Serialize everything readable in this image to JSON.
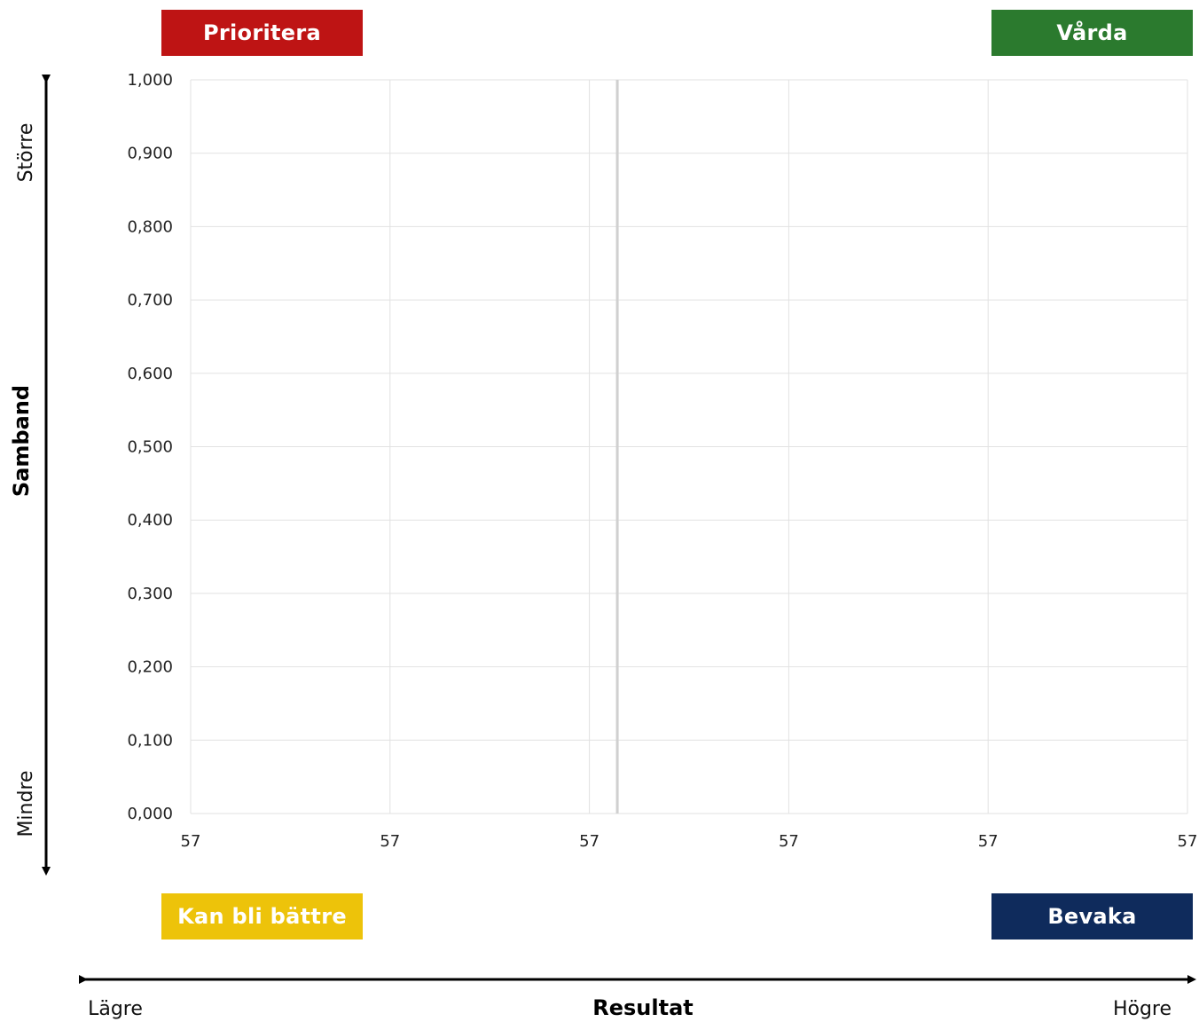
{
  "quadrants": {
    "top_left": {
      "label": "Prioritera",
      "color": "#BE1414"
    },
    "top_right": {
      "label": "Vårda",
      "color": "#2B7A2E"
    },
    "bottom_left": {
      "label": "Kan bli bättre",
      "color": "#EDC30A"
    },
    "bottom_right": {
      "label": "Bevaka",
      "color": "#0F2B5C"
    }
  },
  "y_axis": {
    "title": "Samband",
    "high_label": "Större",
    "low_label": "Mindre"
  },
  "x_axis": {
    "title": "Resultat",
    "low_label": "Lägre",
    "high_label": "Högre"
  },
  "chart_data": {
    "type": "scatter",
    "title": "",
    "xlabel": "Resultat",
    "ylabel": "Samband",
    "x_tick_labels": [
      "57",
      "57",
      "57",
      "57",
      "57",
      "57"
    ],
    "y_tick_labels": [
      "0,000",
      "0,100",
      "0,200",
      "0,300",
      "0,400",
      "0,500",
      "0,600",
      "0,700",
      "0,800",
      "0,900",
      "1,000"
    ],
    "ylim": [
      0,
      1
    ],
    "grid": true,
    "reference_line": {
      "orientation": "vertical",
      "color": "#d0d0d0"
    },
    "series": []
  }
}
